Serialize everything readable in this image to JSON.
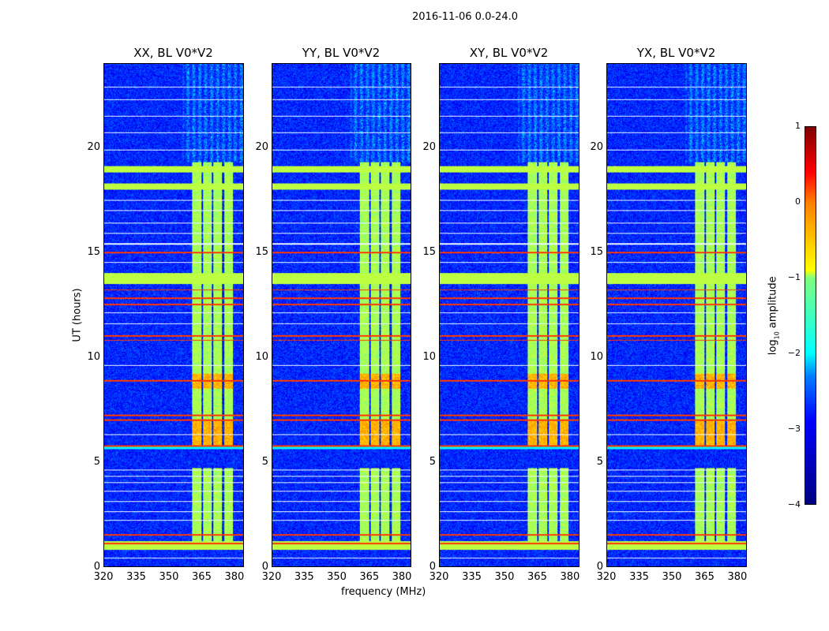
{
  "title": "2016-11-06 0.0-24.0",
  "chart_data": {
    "type": "heatmap",
    "title": "2016-11-06 0.0-24.0",
    "xlabel": "frequency (MHz)",
    "ylabel": "UT (hours)",
    "xlim": [
      320,
      384
    ],
    "ylim": [
      0,
      24
    ],
    "xticks": [
      "320",
      "335",
      "350",
      "365",
      "380"
    ],
    "yticks": [
      "0",
      "5",
      "10",
      "15",
      "20"
    ],
    "panels": [
      {
        "title": "XX, BL V0*V2"
      },
      {
        "title": "YY, BL V0*V2"
      },
      {
        "title": "XY, BL V0*V2"
      },
      {
        "title": "YX, BL V0*V2"
      }
    ],
    "colorbar": {
      "label": "log10 amplitude",
      "label_main": "log",
      "label_sub": "10",
      "label_rest": " amplitude",
      "range": [
        -4,
        1
      ],
      "ticks": [
        "1",
        "0",
        "−1",
        "−2",
        "−3",
        "−4"
      ],
      "colormap": "jet"
    },
    "background_level": -3.2,
    "rfi_channel_bands_mhz": [
      [
        360.4,
        364.7
      ],
      [
        365.4,
        369.4
      ],
      [
        370.4,
        374.4
      ],
      [
        375.4,
        379.3
      ]
    ],
    "rfi_band_active_hours": [
      [
        1.1,
        4.7
      ],
      [
        5.8,
        13.5
      ],
      [
        14.0,
        19.3
      ]
    ],
    "rfi_band_level": -1.3,
    "broadband_rows": [
      {
        "t": [
          0.8,
          1.2
        ],
        "level": -1.2
      },
      {
        "t": [
          5.6,
          5.8
        ],
        "level": -2.2
      },
      {
        "t": [
          13.5,
          14.0
        ],
        "level": -1.2
      },
      {
        "t": [
          18.0,
          18.3
        ],
        "level": -1.2
      },
      {
        "t": [
          18.8,
          19.1
        ],
        "level": -1.2
      }
    ],
    "strong_rows_hours": [
      1.1,
      1.5,
      5.75,
      7.0,
      7.2,
      8.85,
      10.8,
      11.0,
      12.5,
      12.8,
      13.2,
      15.0
    ],
    "flagged_rows_hours": [
      0.4,
      2.2,
      2.6,
      3.1,
      3.6,
      4.0,
      4.3,
      4.6,
      6.3,
      9.6,
      11.6,
      12.1,
      14.5,
      15.4,
      15.9,
      16.4,
      17.0,
      17.5,
      19.9,
      20.7,
      21.5,
      22.3,
      22.9
    ]
  }
}
